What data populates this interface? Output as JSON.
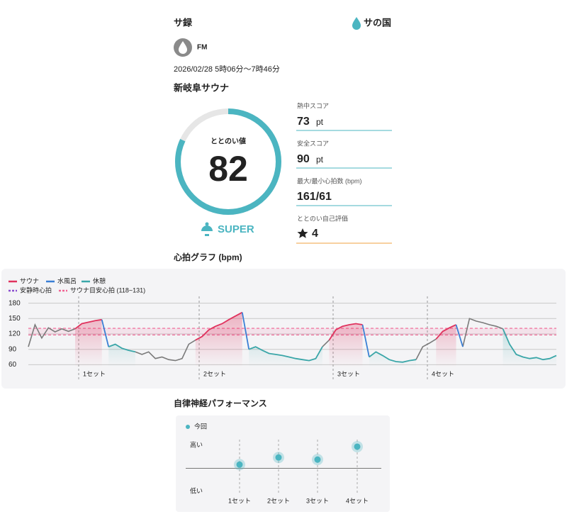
{
  "header": {
    "title": "サ録",
    "brand": "サの国"
  },
  "user": {
    "name": "FM"
  },
  "datetime": "2026/02/28 5時06分〜7時46分",
  "facility": "新岐阜サウナ",
  "score": {
    "label": "ととのい値",
    "value": 82,
    "scale": [
      0,
      100
    ],
    "rank": "SUPER"
  },
  "stats": [
    {
      "label": "熱中スコア",
      "value": 73,
      "unit": "pt"
    },
    {
      "label": "安全スコア",
      "value": 90,
      "unit": "pt"
    },
    {
      "label": "最大/最小心拍数 (bpm)",
      "value": "161/61"
    },
    {
      "label": "ととのい自己評価",
      "value": 4
    }
  ],
  "chart_data": [
    {
      "type": "line",
      "title": "心拍グラフ (bpm)",
      "ylim": [
        55,
        185
      ],
      "yticks": [
        60,
        90,
        120,
        150,
        180
      ],
      "grid": true,
      "set_labels": [
        "1セット",
        "2セット",
        "3セット",
        "4セット"
      ],
      "series": [
        {
          "name": "サウナ",
          "color": "#e0335e",
          "values": [
            null,
            null,
            null,
            null,
            null,
            null,
            null,
            130,
            140,
            143,
            146,
            148,
            null,
            null,
            null,
            null,
            null,
            null,
            null,
            null,
            null,
            null,
            null,
            null,
            null,
            108,
            115,
            128,
            135,
            140,
            148,
            155,
            162,
            null,
            null,
            null,
            null,
            null,
            null,
            null,
            null,
            null,
            null,
            null,
            null,
            108,
            128,
            135,
            138,
            140,
            138,
            null,
            null,
            null,
            null,
            null,
            null,
            null,
            null,
            null,
            null,
            110,
            125,
            132,
            138,
            null,
            null,
            null,
            null,
            null,
            null,
            null,
            null,
            null,
            null,
            null,
            null,
            null,
            null,
            null
          ]
        },
        {
          "name": "水風呂",
          "color": "#3a7fd5",
          "values": [
            null,
            null,
            null,
            null,
            null,
            null,
            null,
            null,
            null,
            null,
            null,
            148,
            95,
            null,
            null,
            null,
            null,
            null,
            null,
            null,
            null,
            null,
            null,
            null,
            null,
            null,
            null,
            null,
            null,
            null,
            null,
            null,
            162,
            90,
            null,
            null,
            null,
            null,
            null,
            null,
            null,
            null,
            null,
            null,
            null,
            null,
            null,
            null,
            null,
            null,
            138,
            75,
            null,
            null,
            null,
            null,
            null,
            null,
            null,
            null,
            null,
            null,
            null,
            null,
            138,
            95,
            null,
            null,
            null,
            null,
            null,
            null,
            null,
            null,
            null,
            null,
            null,
            null,
            null,
            null
          ]
        },
        {
          "name": "休憩",
          "color": "#3aa6a8",
          "values": [
            null,
            null,
            null,
            null,
            null,
            null,
            null,
            null,
            null,
            null,
            null,
            null,
            95,
            100,
            92,
            88,
            85,
            null,
            null,
            null,
            null,
            null,
            null,
            null,
            null,
            null,
            null,
            null,
            null,
            null,
            null,
            null,
            null,
            90,
            95,
            88,
            82,
            80,
            78,
            75,
            72,
            70,
            68,
            72,
            95,
            null,
            null,
            null,
            null,
            null,
            null,
            75,
            85,
            78,
            70,
            66,
            65,
            68,
            70,
            null,
            null,
            null,
            null,
            null,
            null,
            null,
            null,
            null,
            null,
            null,
            null,
            130,
            100,
            80,
            75,
            72,
            74,
            70,
            72,
            78
          ]
        }
      ],
      "other": {
        "color": "#7a7a7a",
        "values": [
          95,
          138,
          112,
          132,
          124,
          130,
          125,
          130,
          null,
          null,
          null,
          null,
          null,
          null,
          null,
          null,
          85,
          80,
          85,
          72,
          75,
          70,
          68,
          72,
          100,
          108,
          null,
          null,
          null,
          null,
          null,
          null,
          null,
          null,
          null,
          null,
          null,
          null,
          null,
          null,
          null,
          null,
          null,
          null,
          95,
          108,
          null,
          null,
          null,
          null,
          null,
          null,
          null,
          null,
          null,
          null,
          null,
          null,
          70,
          95,
          102,
          110,
          null,
          null,
          null,
          95,
          150,
          145,
          142,
          138,
          135,
          130,
          null,
          null,
          null,
          null,
          null,
          null,
          null,
          null
        ]
      },
      "reference_lines": [
        {
          "name": "安静時心拍",
          "color": "#8a4fd0"
        },
        {
          "name": "サウナ目安心拍 (118~131)",
          "color": "#f06292",
          "band": [
            118,
            131
          ]
        }
      ]
    },
    {
      "type": "scatter",
      "title": "自律神経パフォーマンス",
      "categories": [
        "1セット",
        "2セット",
        "3セット",
        "4セット"
      ],
      "ylim": [
        -1,
        1
      ],
      "yticks": [
        {
          "value": 1,
          "label": "高い"
        },
        {
          "value": -1,
          "label": "低い"
        }
      ],
      "series": [
        {
          "name": "今回",
          "color": "#4bb5c1",
          "values": [
            0.16,
            0.47,
            0.38,
            0.94
          ]
        }
      ]
    }
  ]
}
